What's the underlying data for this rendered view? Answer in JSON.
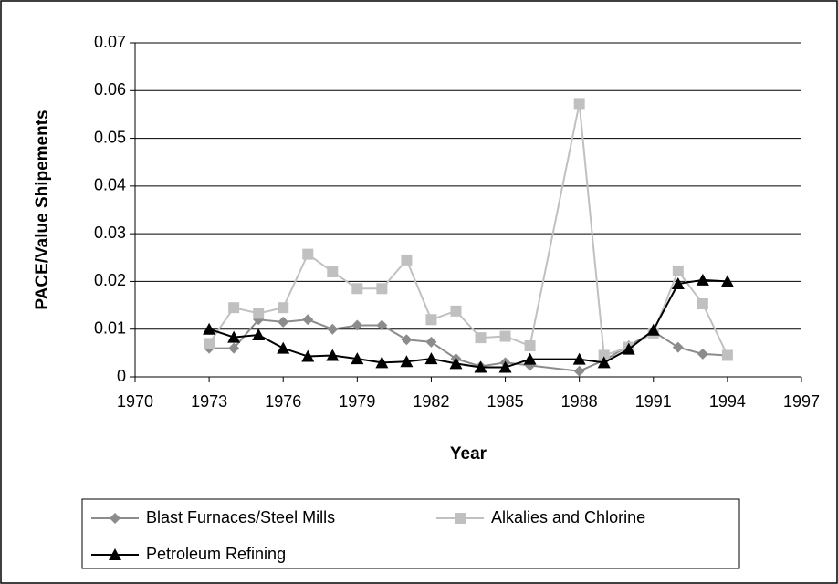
{
  "chart_data": {
    "type": "line",
    "x_label": "Year",
    "y_label": "PACE/Value Shipements",
    "x": [
      1973,
      1974,
      1975,
      1976,
      1977,
      1978,
      1979,
      1980,
      1981,
      1982,
      1983,
      1984,
      1985,
      1986,
      1988,
      1989,
      1990,
      1991,
      1992,
      1993,
      1994
    ],
    "series": [
      {
        "name": "Blast Furnaces/Steel Mills",
        "color": "#8c8c8c",
        "marker": "diamond",
        "values": [
          0.006,
          0.006,
          0.012,
          0.0115,
          0.012,
          0.01,
          0.0108,
          0.0108,
          0.0078,
          0.0073,
          0.0038,
          0.0022,
          0.003,
          0.0024,
          0.0012,
          0.0035,
          0.0065,
          0.0095,
          0.0062,
          0.0048,
          0.0045
        ]
      },
      {
        "name": "Alkalies and Chlorine",
        "color": "#c0c0c0",
        "marker": "square",
        "values": [
          0.007,
          0.0145,
          0.0133,
          0.0145,
          0.0257,
          0.022,
          0.0185,
          0.0185,
          0.0245,
          0.012,
          0.0138,
          0.0082,
          0.0085,
          0.0065,
          0.0573,
          0.0045,
          0.0062,
          0.0092,
          0.0222,
          0.0153,
          0.0045
        ]
      },
      {
        "name": "Petroleum Refining",
        "color": "#000000",
        "marker": "triangle",
        "values": [
          0.01,
          0.0083,
          0.0088,
          0.006,
          0.0043,
          0.0045,
          0.0038,
          0.003,
          0.0032,
          0.0038,
          0.0028,
          0.002,
          0.002,
          0.0037,
          0.0037,
          0.003,
          0.0058,
          0.0098,
          0.0195,
          0.0203,
          0.02
        ]
      }
    ],
    "xlim": [
      1970,
      1997
    ],
    "xticks": [
      1970,
      1973,
      1976,
      1979,
      1982,
      1985,
      1988,
      1991,
      1994,
      1997
    ],
    "ylim": [
      0,
      0.07
    ],
    "yticks": [
      0,
      0.01,
      0.02,
      0.03,
      0.04,
      0.05,
      0.06,
      0.07
    ],
    "grid": true
  }
}
